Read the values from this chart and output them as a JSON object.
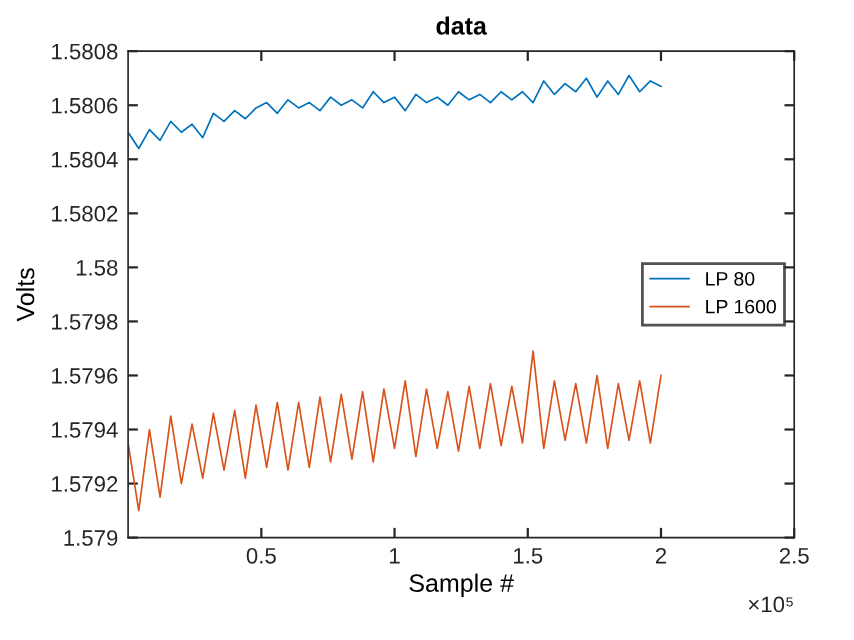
{
  "chart_data": {
    "type": "line",
    "title": "data",
    "xlabel": "Sample #",
    "ylabel": "Volts",
    "x": [
      0,
      0.04,
      0.08,
      0.12,
      0.16,
      0.2,
      0.24,
      0.28,
      0.32,
      0.36,
      0.4,
      0.44,
      0.48,
      0.52,
      0.56,
      0.6,
      0.64,
      0.68,
      0.72,
      0.76,
      0.8,
      0.84,
      0.88,
      0.92,
      0.96,
      1,
      1.04,
      1.08,
      1.12,
      1.16,
      1.2,
      1.24,
      1.28,
      1.32,
      1.36,
      1.4,
      1.44,
      1.48,
      1.52,
      1.56,
      1.6,
      1.64,
      1.68,
      1.72,
      1.76,
      1.8,
      1.84,
      1.88,
      1.92,
      1.96,
      2
    ],
    "series": [
      {
        "name": "LP 80",
        "color": "#0072bd",
        "values": [
          1.5805,
          1.58044,
          1.58051,
          1.58047,
          1.58054,
          1.5805,
          1.58053,
          1.58048,
          1.58057,
          1.58054,
          1.58058,
          1.58055,
          1.58059,
          1.58061,
          1.58057,
          1.58062,
          1.58059,
          1.58061,
          1.58058,
          1.58063,
          1.5806,
          1.58062,
          1.58059,
          1.58065,
          1.58061,
          1.58063,
          1.58058,
          1.58064,
          1.58061,
          1.58063,
          1.5806,
          1.58065,
          1.58062,
          1.58064,
          1.58061,
          1.58065,
          1.58062,
          1.58065,
          1.58061,
          1.58069,
          1.58064,
          1.58068,
          1.58065,
          1.5807,
          1.58063,
          1.58069,
          1.58064,
          1.58071,
          1.58065,
          1.58069,
          1.58067
        ]
      },
      {
        "name": "LP 1600",
        "color": "#d95319",
        "values": [
          1.57935,
          1.5791,
          1.5794,
          1.57915,
          1.57945,
          1.5792,
          1.57942,
          1.57922,
          1.57946,
          1.57925,
          1.57947,
          1.57922,
          1.57949,
          1.57926,
          1.5795,
          1.57925,
          1.5795,
          1.57926,
          1.57952,
          1.57928,
          1.57953,
          1.57929,
          1.57954,
          1.57928,
          1.57955,
          1.57933,
          1.57958,
          1.5793,
          1.57955,
          1.57933,
          1.57954,
          1.57932,
          1.57956,
          1.57933,
          1.57957,
          1.57934,
          1.57956,
          1.57935,
          1.57969,
          1.57933,
          1.57958,
          1.57936,
          1.57957,
          1.57935,
          1.5796,
          1.57933,
          1.57957,
          1.57936,
          1.57958,
          1.57935,
          1.5796
        ]
      }
    ],
    "xlim": [
      0,
      2.5
    ],
    "xticks": [
      0.5,
      1,
      1.5,
      2,
      2.5
    ],
    "ylim": [
      1.579,
      1.5808
    ],
    "yticks": [
      1.579,
      1.5792,
      1.5794,
      1.5796,
      1.5798,
      1.58,
      1.5802,
      1.5804,
      1.5806,
      1.5808
    ],
    "annotations": [
      "×10⁵"
    ],
    "legend": "right",
    "grid": false,
    "marker": "none",
    "line_style": "solid"
  }
}
